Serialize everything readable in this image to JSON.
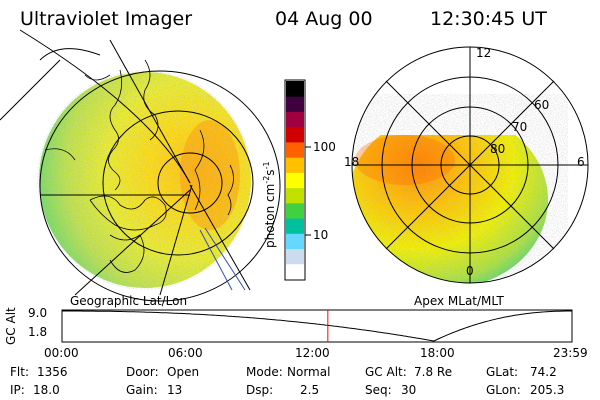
{
  "header": {
    "title": "Ultraviolet Imager",
    "date": "04 Aug 00",
    "time": "12:30:45 UT"
  },
  "left_panel": {
    "caption": "Geographic Lat/Lon"
  },
  "right_panel": {
    "caption": "Apex MLat/MLT",
    "mlt_labels": [
      "12",
      "18",
      "6",
      "0"
    ],
    "mlat_labels": [
      "60",
      "70",
      "80"
    ]
  },
  "colorbar": {
    "unit_label": "photon cm",
    "unit_sup1": "-2",
    "unit_s": "s",
    "unit_sup2": "-1",
    "ticks": [
      "100",
      "10"
    ],
    "scale": "log",
    "tick_values": [
      100,
      10
    ]
  },
  "colors": {
    "colorbar_stops": [
      "#ffffff",
      "#ccdcec",
      "#66d8ff",
      "#00c0a0",
      "#40d040",
      "#c0e000",
      "#ffff00",
      "#ffc000",
      "#ff6000",
      "#d00000",
      "#a00040",
      "#400040",
      "#000000"
    ],
    "marker": "#ff0000"
  },
  "altitude_plot": {
    "ylabel": "GC Alt",
    "yticks": [
      "9.0",
      "1.8"
    ],
    "xticks": [
      "00:00",
      "06:00",
      "12:00",
      "18:00",
      "23:59"
    ],
    "current_time_hours": 12.51,
    "min_time_hours": 17.5,
    "ylim": [
      1.8,
      9.0
    ]
  },
  "status": {
    "flt_label": "Flt:",
    "flt_value": "1356",
    "door_label": "Door:",
    "door_value": "Open",
    "mode_label": "Mode:",
    "mode_value": "Normal",
    "gcalt_label": "GC Alt:",
    "gcalt_value": "7.8 Re",
    "glat_label": "GLat:",
    "glat_value": "74.2",
    "ip_label": "IP:",
    "ip_value": "18.0",
    "gain_label": "Gain:",
    "gain_value": "13",
    "dsp_label": "Dsp:",
    "dsp_value": "2.5",
    "seq_label": "Seq:",
    "seq_value": "30",
    "glon_label": "GLon:",
    "glon_value": "205.3"
  }
}
